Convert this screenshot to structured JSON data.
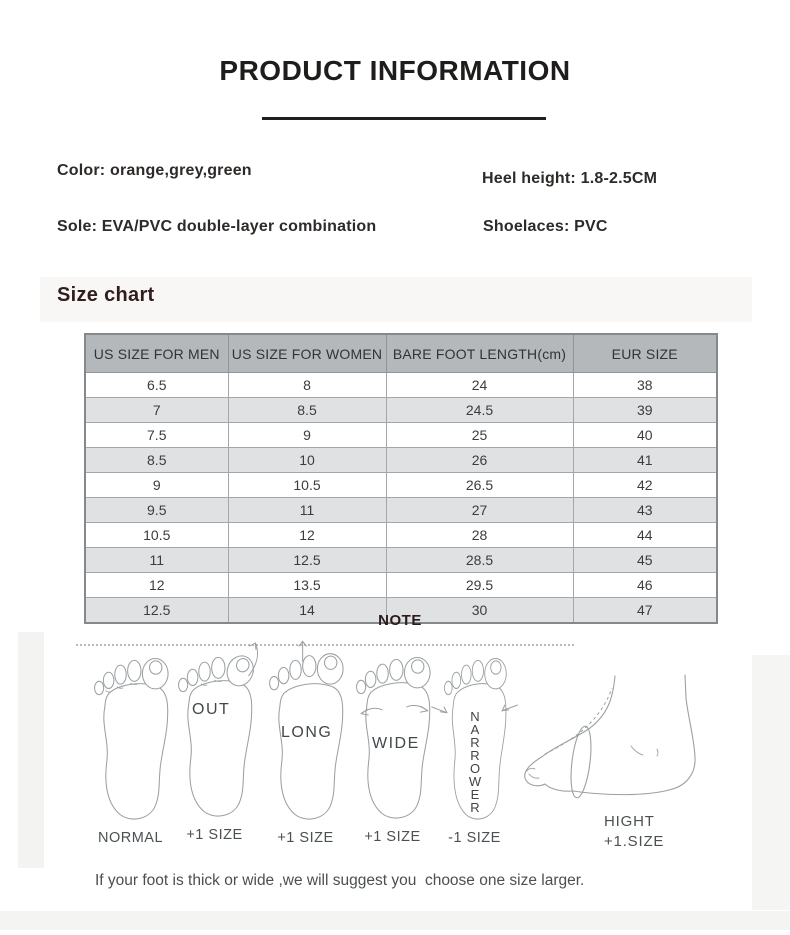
{
  "title": "PRODUCT INFORMATION",
  "product_info": {
    "items": [
      {
        "label": "Color:",
        "value": "orange,grey,green"
      },
      {
        "label": "Heel height:",
        "value": "1.8-2.5CM"
      },
      {
        "label": "Sole:",
        "value": "EVA/PVC double-layer combination"
      },
      {
        "label": "Shoelaces:",
        "value": "PVC"
      }
    ]
  },
  "size_chart": {
    "heading": "Size chart",
    "columns": [
      "US SIZE FOR MEN",
      "US SIZE FOR WOMEN",
      "BARE FOOT LENGTH(cm)",
      "EUR SIZE"
    ],
    "rows": [
      [
        "6.5",
        "8",
        "24",
        "38"
      ],
      [
        "7",
        "8.5",
        "24.5",
        "39"
      ],
      [
        "7.5",
        "9",
        "25",
        "40"
      ],
      [
        "8.5",
        "10",
        "26",
        "41"
      ],
      [
        "9",
        "10.5",
        "26.5",
        "42"
      ],
      [
        "9.5",
        "11",
        "27",
        "43"
      ],
      [
        "10.5",
        "12",
        "28",
        "44"
      ],
      [
        "11",
        "12.5",
        "28.5",
        "45"
      ],
      [
        "12",
        "13.5",
        "29.5",
        "46"
      ],
      [
        "12.5",
        "14",
        "30",
        "47"
      ]
    ]
  },
  "note": {
    "heading": "NOTE",
    "feet": [
      {
        "type": "normal",
        "overlay": "",
        "caption": "NORMAL"
      },
      {
        "type": "out",
        "overlay": "OUT",
        "caption": "+1 SIZE"
      },
      {
        "type": "long",
        "overlay": "LONG",
        "caption": "+1 SIZE"
      },
      {
        "type": "wide",
        "overlay": "WIDE",
        "caption": "+1 SIZE"
      },
      {
        "type": "narrower",
        "overlay": "NARROWER",
        "caption": "-1 SIZE"
      },
      {
        "type": "hight",
        "overlay": "HIGHT",
        "caption": "+1.SIZE"
      }
    ],
    "footnote": "If your foot is thick or wide ,we will suggest you  choose one size larger."
  },
  "colors": {
    "heading_dark": "#2f1e1d",
    "table_header_bg": "#b4b8bb",
    "table_row_alt_bg": "#e0e1e3",
    "table_border": "#8f9497",
    "sketch_stroke": "#9ba0a3",
    "text_primary": "#2e2a28",
    "text_secondary": "#4a4f52"
  }
}
